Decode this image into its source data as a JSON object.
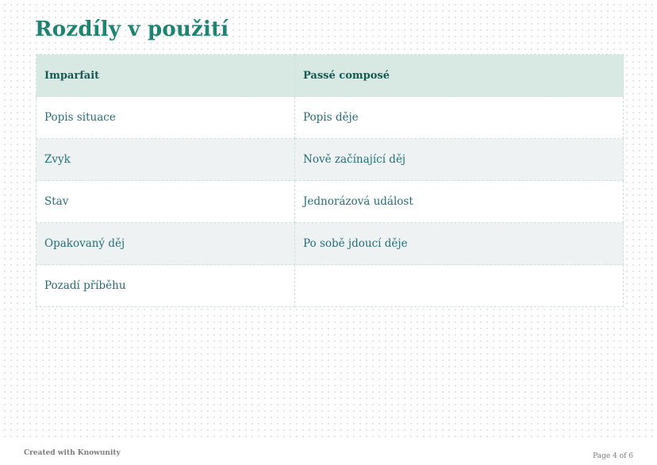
{
  "page": {
    "title": "Rozdíly v použití",
    "footer_left": "Created with Knowunity",
    "footer_right": "Page 4 of 6"
  },
  "colors": {
    "title_text": "#1e8370",
    "header_text": "#155a52",
    "cell_text": "#266f78",
    "header_bg": "#d8e9e4",
    "row_alt_bg": "#eef2f2",
    "table_border": "#cde2dc",
    "footer_text": "#7d7d7d",
    "dot_grid": "#e2e7e6"
  },
  "table": {
    "headers": [
      "Imparfait",
      "Passé composé"
    ],
    "rows": [
      {
        "left": "Popis situace",
        "right": "Popis děje"
      },
      {
        "left": "Zvyk",
        "right": "Nově začínající děj"
      },
      {
        "left": "Stav",
        "right": "Jednorázová událost"
      },
      {
        "left": "Opakovaný děj",
        "right": "Po sobě jdoucí děje"
      },
      {
        "left": "Pozadí příběhu",
        "right": ""
      }
    ]
  }
}
